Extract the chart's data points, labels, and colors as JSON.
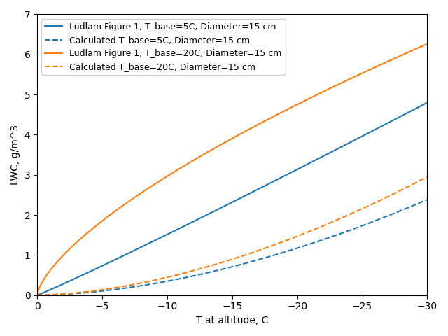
{
  "xlabel": "T at altitude, C",
  "ylabel": "LWC, g/m^3",
  "xlim": [
    0,
    -30
  ],
  "ylim": [
    0,
    7
  ],
  "yticks": [
    0,
    1,
    2,
    3,
    4,
    5,
    6,
    7
  ],
  "xticks": [
    0,
    -5,
    -10,
    -15,
    -20,
    -25,
    -30
  ],
  "legend_labels": [
    "Ludlam Figure 1, T_base=5C, Diameter=15 cm",
    "Calculated T_base=5C, Diameter=15 cm",
    "Ludlam Figure 1, T_base=20C, Diameter=15 cm",
    "Calculated T_base=20C, Diameter=15 cm"
  ],
  "blue_color": "#1f77b4",
  "orange_color": "#ff7f0e",
  "figsize": [
    6.4,
    4.8
  ],
  "dpi": 100,
  "blue_solid_a": 0.135,
  "blue_solid_n": 1.05,
  "blue_dashed_a": 0.0062,
  "blue_dashed_n": 1.75,
  "orange_solid_a": 0.62,
  "orange_solid_n": 0.68,
  "orange_dashed_a": 0.0085,
  "orange_dashed_n": 1.72
}
